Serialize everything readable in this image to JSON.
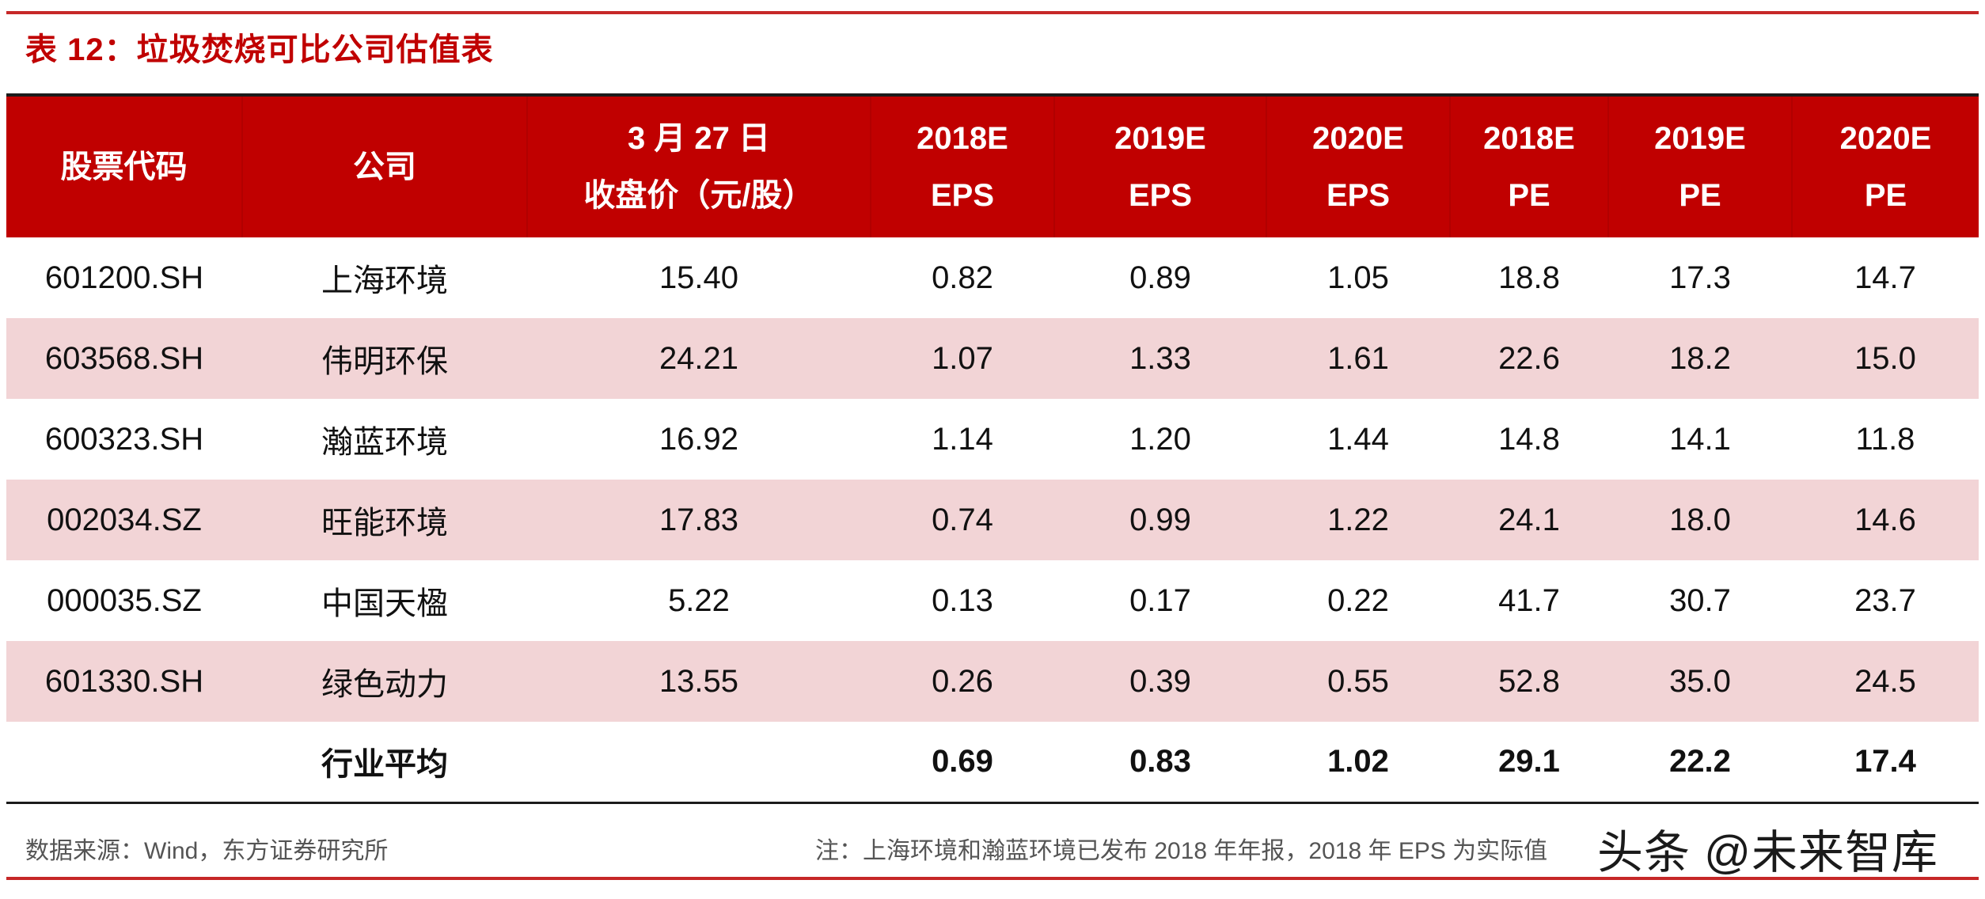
{
  "title": "表 12：垃圾焚烧可比公司估值表",
  "table": {
    "headers": [
      {
        "line1": "股票代码",
        "line2": ""
      },
      {
        "line1": "公司",
        "line2": ""
      },
      {
        "line1": "3 月 27 日",
        "line2": "收盘价（元/股）"
      },
      {
        "line1": "2018E",
        "line2": "EPS"
      },
      {
        "line1": "2019E",
        "line2": "EPS"
      },
      {
        "line1": "2020E",
        "line2": "EPS"
      },
      {
        "line1": "2018E",
        "line2": "PE"
      },
      {
        "line1": "2019E",
        "line2": "PE"
      },
      {
        "line1": "2020E",
        "line2": "PE"
      }
    ],
    "rows": [
      {
        "code": "601200.SH",
        "company": "上海环境",
        "price": "15.40",
        "eps2018": "0.82",
        "eps2019": "0.89",
        "eps2020": "1.05",
        "pe2018": "18.8",
        "pe2019": "17.3",
        "pe2020": "14.7"
      },
      {
        "code": "603568.SH",
        "company": "伟明环保",
        "price": "24.21",
        "eps2018": "1.07",
        "eps2019": "1.33",
        "eps2020": "1.61",
        "pe2018": "22.6",
        "pe2019": "18.2",
        "pe2020": "15.0"
      },
      {
        "code": "600323.SH",
        "company": "瀚蓝环境",
        "price": "16.92",
        "eps2018": "1.14",
        "eps2019": "1.20",
        "eps2020": "1.44",
        "pe2018": "14.8",
        "pe2019": "14.1",
        "pe2020": "11.8"
      },
      {
        "code": "002034.SZ",
        "company": "旺能环境",
        "price": "17.83",
        "eps2018": "0.74",
        "eps2019": "0.99",
        "eps2020": "1.22",
        "pe2018": "24.1",
        "pe2019": "18.0",
        "pe2020": "14.6"
      },
      {
        "code": "000035.SZ",
        "company": "中国天楹",
        "price": "5.22",
        "eps2018": "0.13",
        "eps2019": "0.17",
        "eps2020": "0.22",
        "pe2018": "41.7",
        "pe2019": "30.7",
        "pe2020": "23.7"
      },
      {
        "code": "601330.SH",
        "company": "绿色动力",
        "price": "13.55",
        "eps2018": "0.26",
        "eps2019": "0.39",
        "eps2020": "0.55",
        "pe2018": "52.8",
        "pe2019": "35.0",
        "pe2020": "24.5"
      }
    ],
    "average": {
      "code": "",
      "company": "行业平均",
      "price": "",
      "eps2018": "0.69",
      "eps2019": "0.83",
      "eps2020": "1.02",
      "pe2018": "29.1",
      "pe2019": "22.2",
      "pe2020": "17.4"
    }
  },
  "footer": {
    "source": "数据来源：Wind，东方证券研究所",
    "note": "注：上海环境和瀚蓝环境已发布 2018 年年报，2018 年 EPS 为实际值",
    "watermark": "头条 @未来智库"
  },
  "colors": {
    "header_bg": "#c00000",
    "shaded_row": "#f2d4d6",
    "title": "#c00000"
  }
}
